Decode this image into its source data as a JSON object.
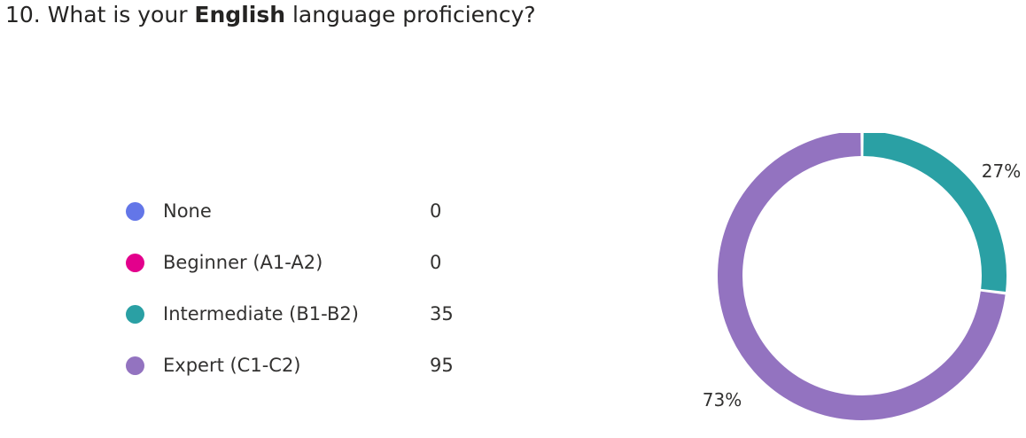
{
  "question": {
    "prefix": "10. What is your ",
    "bold": "English",
    "suffix": " language proficiency?"
  },
  "chart_data": {
    "type": "pie",
    "variant": "donut",
    "title": "10. What is your English language proficiency?",
    "legend_position": "left",
    "categories": [
      "None",
      "Beginner (A1-A2)",
      "Intermediate (B1-B2)",
      "Expert (C1-C2)"
    ],
    "values": [
      0,
      0,
      35,
      95
    ],
    "colors": [
      "#6376e8",
      "#e3008c",
      "#2aa0a4",
      "#9373c0"
    ],
    "data_labels": [
      "",
      "",
      "27%",
      "73%"
    ]
  },
  "legend": [
    {
      "label": "None",
      "count": "0",
      "color": "#6376e8"
    },
    {
      "label": "Beginner (A1-A2)",
      "count": "0",
      "color": "#e3008c"
    },
    {
      "label": "Intermediate (B1-B2)",
      "count": "35",
      "color": "#2aa0a4"
    },
    {
      "label": "Expert (C1-C2)",
      "count": "95",
      "color": "#9373c0"
    }
  ]
}
